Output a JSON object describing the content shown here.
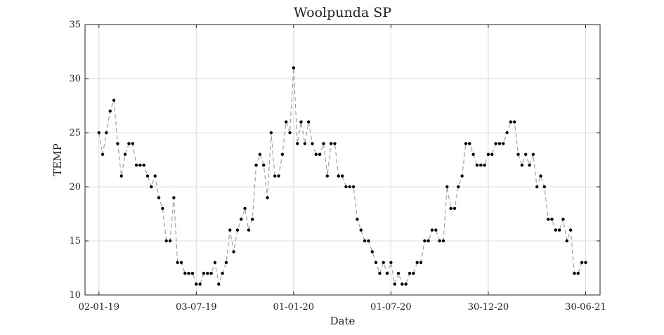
{
  "chart_data": {
    "type": "line",
    "title": "Woolpunda SP",
    "xlabel": "Date",
    "ylabel": "TEMP",
    "ylim": [
      10,
      35
    ],
    "xlim": [
      "2018-12-07",
      "2021-07-27"
    ],
    "grid": true,
    "x_tick_labels": [
      "02-01-19",
      "03-07-19",
      "01-01-20",
      "01-07-20",
      "30-12-20",
      "30-06-21"
    ],
    "x_tick_dates": [
      "2019-01-02",
      "2019-07-03",
      "2020-01-01",
      "2020-07-01",
      "2020-12-30",
      "2021-06-30"
    ],
    "y_ticks": [
      10,
      15,
      20,
      25,
      30,
      35
    ],
    "line_style": "dashed",
    "line_color": "#9a9a9a",
    "marker_color": "#000000",
    "series": [
      {
        "x": [
          "2019-01-02",
          "2019-01-09",
          "2019-01-16",
          "2019-01-23",
          "2019-01-30",
          "2019-02-06",
          "2019-02-13",
          "2019-02-20",
          "2019-02-27",
          "2019-03-06",
          "2019-03-13",
          "2019-03-20",
          "2019-03-27",
          "2019-04-03",
          "2019-04-10",
          "2019-04-17",
          "2019-04-24",
          "2019-05-01",
          "2019-05-08",
          "2019-05-15",
          "2019-05-22",
          "2019-05-29",
          "2019-06-05",
          "2019-06-12",
          "2019-06-19",
          "2019-06-26",
          "2019-07-03",
          "2019-07-10",
          "2019-07-17",
          "2019-07-24",
          "2019-07-31",
          "2019-08-07",
          "2019-08-14",
          "2019-08-21",
          "2019-08-28",
          "2019-09-04",
          "2019-09-11",
          "2019-09-18",
          "2019-09-25",
          "2019-10-02",
          "2019-10-09",
          "2019-10-16",
          "2019-10-23",
          "2019-10-30",
          "2019-11-06",
          "2019-11-13",
          "2019-11-20",
          "2019-11-27",
          "2019-12-04",
          "2019-12-11",
          "2019-12-18",
          "2019-12-25",
          "2020-01-01",
          "2020-01-08",
          "2020-01-15",
          "2020-01-22",
          "2020-01-29",
          "2020-02-05",
          "2020-02-12",
          "2020-02-19",
          "2020-02-26",
          "2020-03-04",
          "2020-03-11",
          "2020-03-18",
          "2020-03-25",
          "2020-04-01",
          "2020-04-08",
          "2020-04-15",
          "2020-04-22",
          "2020-04-29",
          "2020-05-06",
          "2020-05-13",
          "2020-05-20",
          "2020-05-27",
          "2020-06-03",
          "2020-06-10",
          "2020-06-17",
          "2020-06-24",
          "2020-07-01",
          "2020-07-08",
          "2020-07-15",
          "2020-07-22",
          "2020-07-29",
          "2020-08-05",
          "2020-08-12",
          "2020-08-19",
          "2020-08-26",
          "2020-09-02",
          "2020-09-09",
          "2020-09-16",
          "2020-09-23",
          "2020-09-30",
          "2020-10-07",
          "2020-10-14",
          "2020-10-21",
          "2020-10-28",
          "2020-11-04",
          "2020-11-11",
          "2020-11-18",
          "2020-11-25",
          "2020-12-02",
          "2020-12-09",
          "2020-12-16",
          "2020-12-23",
          "2020-12-30",
          "2021-01-06",
          "2021-01-13",
          "2021-01-20",
          "2021-01-27",
          "2021-02-03",
          "2021-02-10",
          "2021-02-17",
          "2021-02-24",
          "2021-03-03",
          "2021-03-10",
          "2021-03-17",
          "2021-03-24",
          "2021-03-31",
          "2021-04-07",
          "2021-04-14",
          "2021-04-21",
          "2021-04-28",
          "2021-05-05",
          "2021-05-12",
          "2021-05-19",
          "2021-05-26",
          "2021-06-02",
          "2021-06-09",
          "2021-06-16",
          "2021-06-23",
          "2021-06-30"
        ],
        "y": [
          25,
          23,
          25,
          27,
          28,
          24,
          21,
          23,
          24,
          24,
          22,
          22,
          22,
          21,
          20,
          21,
          19,
          18,
          15,
          15,
          19,
          13,
          13,
          12,
          12,
          12,
          11,
          11,
          12,
          12,
          12,
          13,
          11,
          12,
          13,
          16,
          14,
          16,
          17,
          18,
          16,
          17,
          22,
          23,
          22,
          19,
          25,
          21,
          21,
          23,
          26,
          25,
          31,
          24,
          26,
          24,
          26,
          24,
          23,
          23,
          24,
          21,
          24,
          24,
          21,
          21,
          20,
          20,
          20,
          17,
          16,
          15,
          15,
          14,
          13,
          12,
          13,
          12,
          13,
          11,
          12,
          11,
          11,
          12,
          12,
          13,
          13,
          15,
          15,
          16,
          16,
          15,
          15,
          20,
          18,
          18,
          20,
          21,
          24,
          24,
          23,
          22,
          22,
          22,
          23,
          23,
          24,
          24,
          24,
          25,
          26,
          26,
          23,
          22,
          23,
          22,
          23,
          20,
          21,
          20,
          17,
          17,
          16,
          16,
          17,
          15,
          16,
          12,
          12,
          13,
          13
        ]
      }
    ]
  }
}
